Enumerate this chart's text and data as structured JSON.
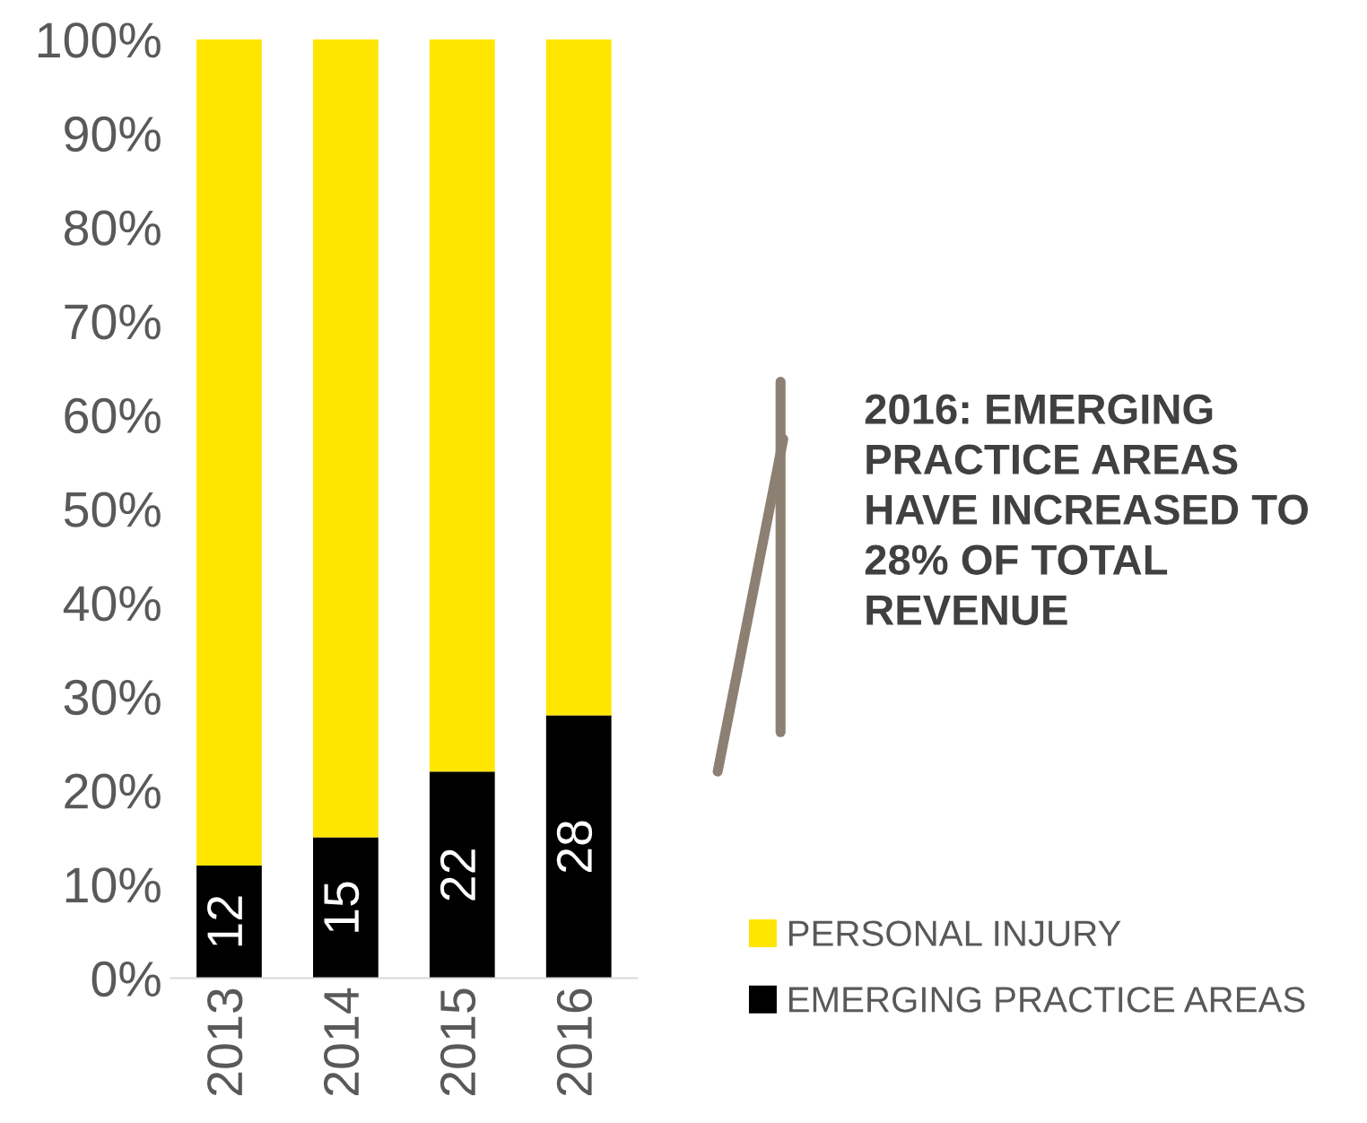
{
  "chart_data": {
    "type": "bar",
    "stacked": true,
    "categories": [
      "2013",
      "2014",
      "2015",
      "2016"
    ],
    "series": [
      {
        "name": "EMERGING PRACTICE AREAS",
        "color": "#000000",
        "values": [
          12,
          15,
          22,
          28
        ],
        "value_labels": [
          "12",
          "15",
          "22",
          "28"
        ]
      },
      {
        "name": "PERSONAL INJURY",
        "color": "#ffe600",
        "values": [
          88,
          85,
          78,
          72
        ]
      }
    ],
    "ylim": [
      0,
      100
    ],
    "yticks": [
      {
        "value": 0,
        "label": "0%"
      },
      {
        "value": 10,
        "label": "10%"
      },
      {
        "value": 20,
        "label": "20%"
      },
      {
        "value": 30,
        "label": "30%"
      },
      {
        "value": 40,
        "label": "40%"
      },
      {
        "value": 50,
        "label": "50%"
      },
      {
        "value": 60,
        "label": "60%"
      },
      {
        "value": 70,
        "label": "70%"
      },
      {
        "value": 80,
        "label": "80%"
      },
      {
        "value": 90,
        "label": "90%"
      },
      {
        "value": 100,
        "label": "100%"
      }
    ],
    "grid": false,
    "legend": "bottom right",
    "annotations": [
      "2016: EMERGING PRACTICE AREAS HAVE INCREASED TO 28% OF TOTAL REVENUE"
    ]
  }
}
